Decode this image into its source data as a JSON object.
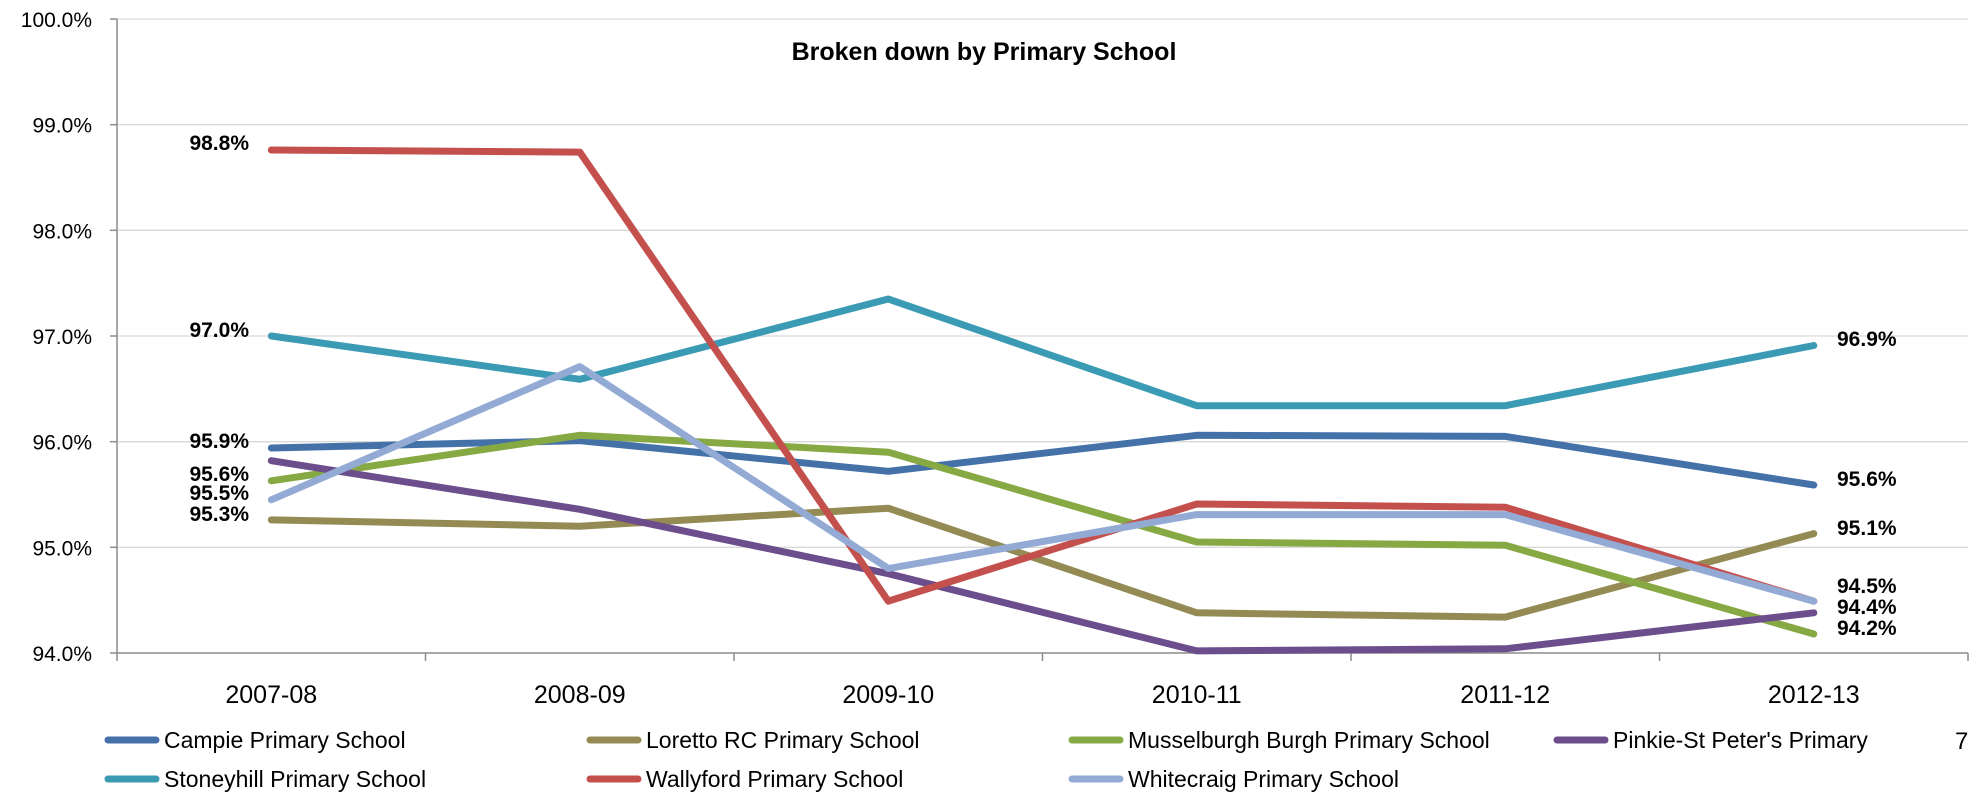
{
  "page_number": "7",
  "chart_data": {
    "type": "line",
    "title": "Broken down by Primary School",
    "xlabel": "",
    "ylabel": "",
    "categories": [
      "2007-08",
      "2008-09",
      "2009-10",
      "2010-11",
      "2011-12",
      "2012-13"
    ],
    "ylim": [
      0.94,
      1.0
    ],
    "y_ticks": [
      0.94,
      0.95,
      0.96,
      0.97,
      0.98,
      0.99,
      1.0
    ],
    "y_tick_labels": [
      "94.0%",
      "95.0%",
      "96.0%",
      "97.0%",
      "98.0%",
      "99.0%",
      "100.0%"
    ],
    "grid": true,
    "legend_position": "bottom",
    "series": [
      {
        "name": "Campie Primary School",
        "color": "#4472a8",
        "values": [
          0.9594,
          0.9601,
          0.9572,
          0.9606,
          0.9605,
          0.9559
        ]
      },
      {
        "name": "Loretto RC Primary School",
        "color": "#948a54",
        "values": [
          0.9526,
          0.952,
          0.9537,
          0.9438,
          0.9434,
          0.9513
        ]
      },
      {
        "name": "Musselburgh Burgh Primary School",
        "color": "#86a944",
        "values": [
          0.9563,
          0.9606,
          0.959,
          0.9505,
          0.9502,
          0.9418
        ]
      },
      {
        "name": "Pinkie-St Peter's Primary",
        "color": "#6c4e8c",
        "values": [
          0.9582,
          0.9536,
          0.9475,
          0.9402,
          0.9404,
          0.9438
        ]
      },
      {
        "name": "Stoneyhill Primary School",
        "color": "#3c9bb4",
        "values": [
          0.97,
          0.9659,
          0.9735,
          0.9634,
          0.9634,
          0.9691
        ]
      },
      {
        "name": "Wallyford Primary School",
        "color": "#c4504d",
        "values": [
          0.9876,
          0.9874,
          0.9449,
          0.9541,
          0.9538,
          0.9449
        ]
      },
      {
        "name": "Whitecraig Primary School",
        "color": "#92aad4",
        "values": [
          0.9545,
          0.9671,
          0.948,
          0.9531,
          0.9531,
          0.9449
        ]
      }
    ],
    "data_labels": {
      "first": [
        {
          "text": "98.8%",
          "value": 0.9876
        },
        {
          "text": "97.0%",
          "value": 0.97
        },
        {
          "text": "95.9%",
          "value": 0.9594
        },
        {
          "text": "95.6%",
          "value": 0.9563
        },
        {
          "text": "95.5%",
          "value": 0.9545
        },
        {
          "text": "95.3%",
          "value": 0.9526
        }
      ],
      "last": [
        {
          "text": "96.9%",
          "value": 0.9691
        },
        {
          "text": "95.6%",
          "value": 0.9559
        },
        {
          "text": "95.1%",
          "value": 0.9513
        },
        {
          "text": "94.5%",
          "value": 0.9449
        },
        {
          "text": "94.4%",
          "value": 0.9438
        },
        {
          "text": "94.2%",
          "value": 0.9418
        }
      ]
    }
  }
}
